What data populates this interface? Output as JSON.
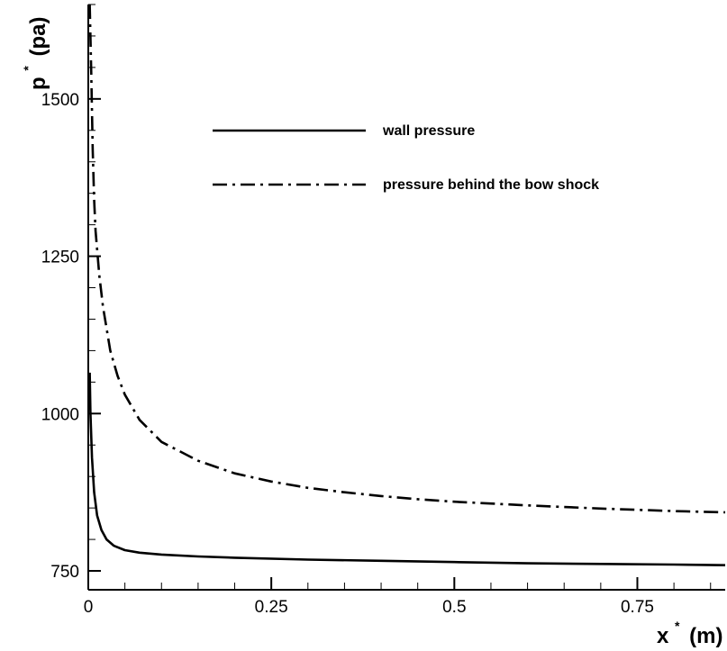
{
  "chart_data": {
    "type": "line",
    "xlabel": {
      "base": "x",
      "sup": "*",
      "unit": "(m)"
    },
    "ylabel": {
      "base": "p",
      "sup": "*",
      "unit": "(pa)"
    },
    "xlim": [
      0,
      0.87
    ],
    "ylim": [
      720,
      1650
    ],
    "x_ticks": [
      0,
      0.25,
      0.5,
      0.75
    ],
    "x_tick_labels": [
      "0",
      "0.25",
      "0.5",
      "0.75"
    ],
    "y_ticks": [
      750,
      1000,
      1250,
      1500
    ],
    "y_tick_labels": [
      "750",
      "1000",
      "1250",
      "1500"
    ],
    "grid": false,
    "legend_position": "top-center",
    "series": [
      {
        "name": "wall pressure",
        "style": "solid",
        "color": "#000000",
        "x": [
          0.002,
          0.003,
          0.005,
          0.008,
          0.012,
          0.018,
          0.025,
          0.035,
          0.05,
          0.07,
          0.1,
          0.15,
          0.2,
          0.3,
          0.4,
          0.5,
          0.6,
          0.7,
          0.8,
          0.87
        ],
        "y": [
          1065,
          1000,
          930,
          875,
          838,
          815,
          800,
          790,
          783,
          779,
          776,
          773,
          771,
          768,
          766,
          764,
          762,
          761,
          760,
          759
        ]
      },
      {
        "name": "pressure behind the bow shock",
        "style": "dashdot",
        "color": "#000000",
        "x": [
          0.002,
          0.004,
          0.006,
          0.008,
          0.01,
          0.015,
          0.02,
          0.03,
          0.04,
          0.05,
          0.07,
          0.1,
          0.15,
          0.2,
          0.25,
          0.3,
          0.35,
          0.4,
          0.45,
          0.5,
          0.6,
          0.7,
          0.8,
          0.87
        ],
        "y": [
          1650,
          1540,
          1420,
          1340,
          1290,
          1220,
          1170,
          1100,
          1060,
          1030,
          990,
          955,
          925,
          905,
          892,
          882,
          875,
          869,
          864,
          860,
          854,
          849,
          845,
          843
        ]
      }
    ]
  }
}
